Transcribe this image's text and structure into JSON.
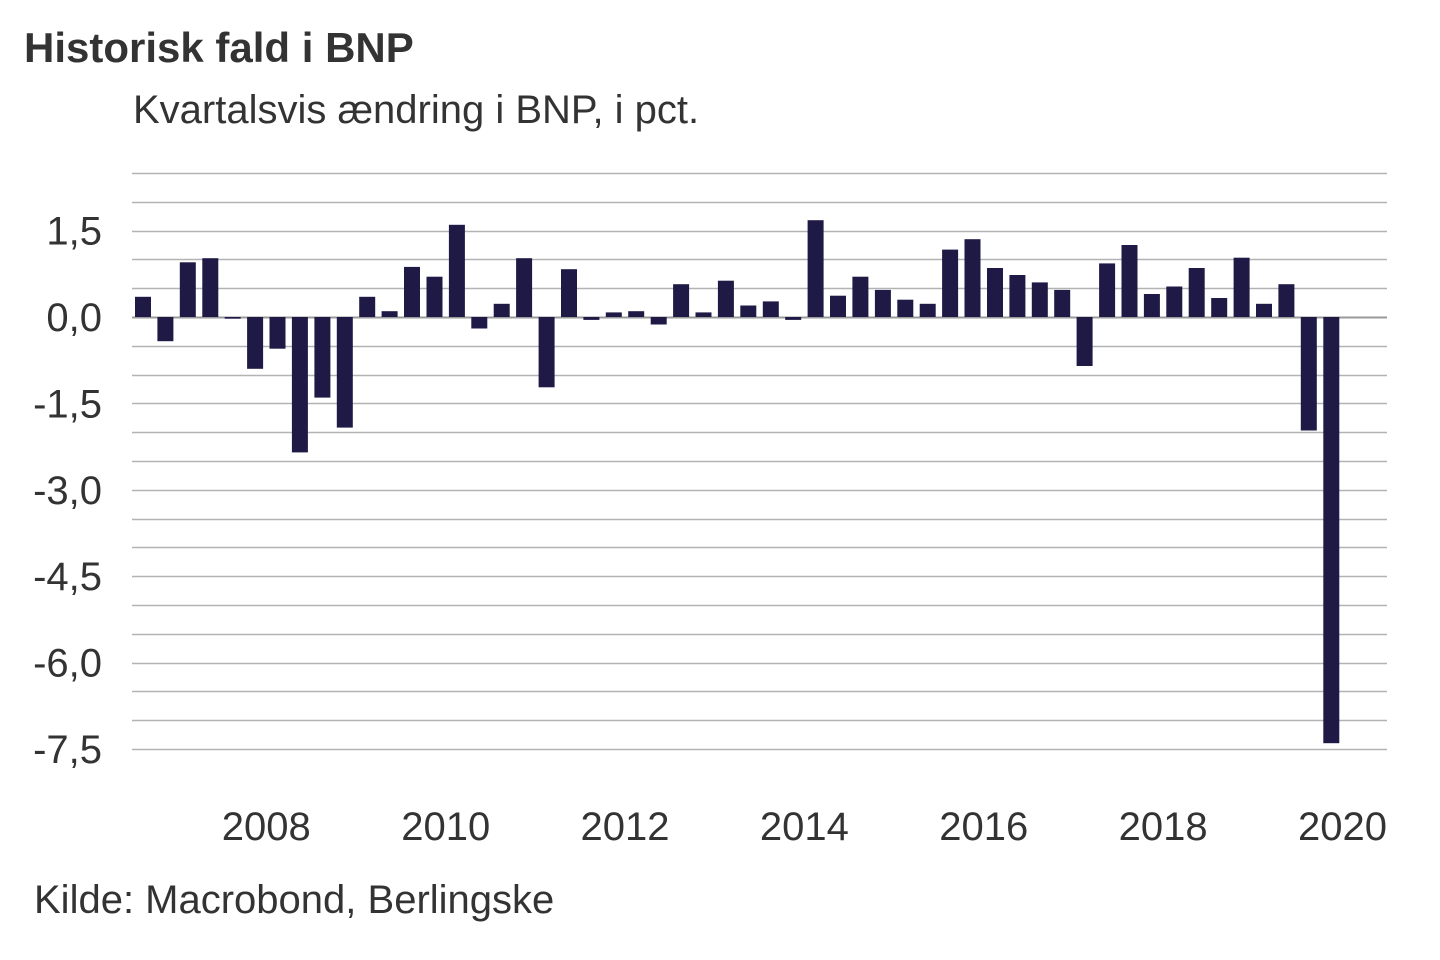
{
  "title": "Historisk fald i BNP",
  "subtitle": "Kvartalsvis ændring i BNP, i pct.",
  "source": "Kilde: Macrobond, Berlingske",
  "chart_data": {
    "type": "bar",
    "ylim": [
      -7.5,
      2.5
    ],
    "yticks": [
      "1,5",
      "0,0",
      "-1,5",
      "-3,0",
      "-4,5",
      "-6,0",
      "-7,5"
    ],
    "ytick_values": [
      1.5,
      0,
      -1.5,
      -3.0,
      -4.5,
      -6.0,
      -7.5
    ],
    "xticks": [
      "2008",
      "2010",
      "2012",
      "2014",
      "2016",
      "2018",
      "2020"
    ],
    "grid": true,
    "bar_color": "#1e1a45",
    "categories": [
      "2007Q1",
      "2007Q2",
      "2007Q3",
      "2007Q4",
      "2008Q1",
      "2008Q2",
      "2008Q3",
      "2008Q4",
      "2009Q1",
      "2009Q2",
      "2009Q3",
      "2009Q4",
      "2010Q1",
      "2010Q2",
      "2010Q3",
      "2010Q4",
      "2011Q1",
      "2011Q2",
      "2011Q3",
      "2011Q4",
      "2012Q1",
      "2012Q2",
      "2012Q3",
      "2012Q4",
      "2013Q1",
      "2013Q2",
      "2013Q3",
      "2013Q4",
      "2014Q1",
      "2014Q2",
      "2014Q3",
      "2014Q4",
      "2015Q1",
      "2015Q2",
      "2015Q3",
      "2015Q4",
      "2016Q1",
      "2016Q2",
      "2016Q3",
      "2016Q4",
      "2017Q1",
      "2017Q2",
      "2017Q3",
      "2017Q4",
      "2018Q1",
      "2018Q2",
      "2018Q3",
      "2018Q4",
      "2019Q1",
      "2019Q2",
      "2019Q3",
      "2019Q4",
      "2020Q1",
      "2020Q2"
    ],
    "values": [
      0.35,
      -0.42,
      0.95,
      1.02,
      -0.03,
      -0.9,
      -0.55,
      -2.35,
      -1.4,
      -1.92,
      0.35,
      0.1,
      0.87,
      0.7,
      1.6,
      -0.2,
      0.23,
      1.02,
      -1.22,
      0.83,
      -0.05,
      0.08,
      0.1,
      -0.13,
      0.57,
      0.08,
      0.63,
      0.2,
      0.27,
      -0.05,
      1.68,
      0.37,
      0.7,
      0.47,
      0.3,
      0.23,
      1.17,
      1.35,
      0.85,
      0.73,
      0.6,
      0.47,
      -0.85,
      0.93,
      1.25,
      0.4,
      0.53,
      0.85,
      0.33,
      1.03,
      0.23,
      0.57,
      -1.97,
      -7.4
    ]
  }
}
